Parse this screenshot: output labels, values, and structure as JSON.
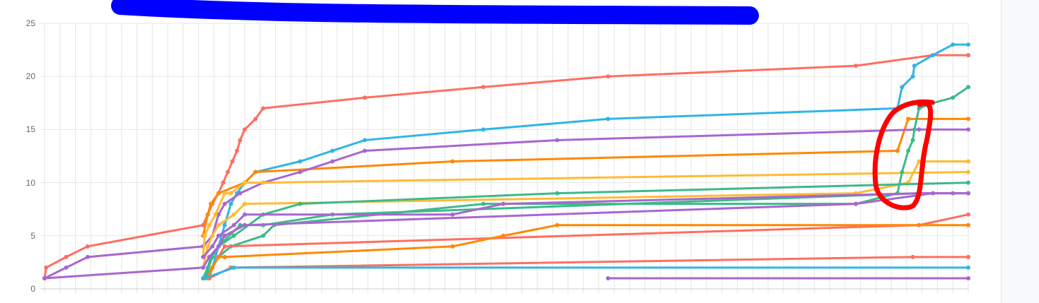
{
  "chart_data": {
    "type": "line",
    "title": "",
    "xlabel": "",
    "ylabel": "",
    "xlim": [
      0,
      60
    ],
    "ylim": [
      0,
      25
    ],
    "yticks": [
      "0",
      "5",
      "10",
      "15",
      "20",
      "25"
    ],
    "grid": true,
    "legend": "none",
    "series": [
      {
        "color": "#ff6e61",
        "points": [
          [
            0,
            1
          ],
          [
            0.1,
            2
          ],
          [
            1.4,
            3
          ],
          [
            2.8,
            4
          ],
          [
            10.3,
            6
          ],
          [
            10.6,
            7
          ],
          [
            10.9,
            8
          ],
          [
            11.3,
            9
          ],
          [
            11.6,
            10
          ],
          [
            11.9,
            11
          ],
          [
            12.2,
            12
          ],
          [
            12.5,
            13
          ],
          [
            12.7,
            14
          ],
          [
            13.0,
            15
          ],
          [
            13.7,
            16
          ],
          [
            14.2,
            17
          ],
          [
            20.8,
            18
          ],
          [
            28.5,
            19
          ],
          [
            36.6,
            20
          ],
          [
            52.7,
            21
          ],
          [
            57.7,
            22
          ],
          [
            60,
            22
          ]
        ]
      },
      {
        "color": "#30b5e5",
        "points": [
          [
            10.3,
            1
          ],
          [
            10.9,
            2
          ],
          [
            11.3,
            4
          ],
          [
            11.7,
            6
          ],
          [
            12.1,
            8
          ],
          [
            12.5,
            9
          ],
          [
            13.0,
            10
          ],
          [
            13.7,
            11
          ],
          [
            16.6,
            12
          ],
          [
            18.7,
            13
          ],
          [
            20.8,
            14
          ],
          [
            28.5,
            15
          ],
          [
            36.6,
            16
          ],
          [
            55.4,
            17
          ],
          [
            55.7,
            19
          ],
          [
            56.4,
            20
          ],
          [
            56.5,
            21
          ],
          [
            57.7,
            22
          ],
          [
            59.0,
            23
          ],
          [
            60,
            23
          ]
        ]
      },
      {
        "color": "#ff8800",
        "points": [
          [
            10.3,
            5
          ],
          [
            10.6,
            7
          ],
          [
            10.8,
            8
          ],
          [
            11.3,
            9
          ],
          [
            13.0,
            10
          ],
          [
            13.7,
            11
          ],
          [
            26.5,
            12
          ],
          [
            55.4,
            13
          ],
          [
            56.1,
            16
          ],
          [
            60,
            16
          ]
        ]
      },
      {
        "color": "#a966cf",
        "points": [
          [
            0,
            1
          ],
          [
            1.4,
            2
          ],
          [
            2.8,
            3
          ],
          [
            10.3,
            4
          ],
          [
            10.9,
            5
          ],
          [
            11.3,
            7
          ],
          [
            11.7,
            8
          ],
          [
            12.7,
            9
          ],
          [
            14.2,
            10
          ],
          [
            16.6,
            11
          ],
          [
            18.7,
            12
          ],
          [
            20.8,
            13
          ],
          [
            33.3,
            14
          ],
          [
            56.8,
            15
          ],
          [
            60,
            15
          ]
        ]
      },
      {
        "color": "#ffbb33",
        "points": [
          [
            10.3,
            3
          ],
          [
            10.4,
            5
          ],
          [
            10.7,
            6
          ],
          [
            11.1,
            7
          ],
          [
            11.7,
            9
          ],
          [
            12.1,
            9
          ],
          [
            13.0,
            10
          ],
          [
            14.2,
            10
          ],
          [
            60,
            11
          ]
        ]
      },
      {
        "color": "#ffbb33",
        "points": [
          [
            10.3,
            2
          ],
          [
            10.6,
            4
          ],
          [
            10.9,
            5
          ],
          [
            11.3,
            6
          ],
          [
            12.3,
            7
          ],
          [
            13.0,
            8
          ],
          [
            52.7,
            9
          ],
          [
            56.1,
            10
          ],
          [
            56.8,
            12
          ],
          [
            60,
            12
          ]
        ]
      },
      {
        "color": "#3cba8a",
        "points": [
          [
            10.3,
            1
          ],
          [
            10.6,
            2
          ],
          [
            10.8,
            3
          ],
          [
            11.3,
            4
          ],
          [
            12.3,
            5
          ],
          [
            14.2,
            7
          ],
          [
            16.6,
            8
          ],
          [
            33.3,
            9
          ],
          [
            60,
            10
          ]
        ]
      },
      {
        "color": "#3cba8a",
        "points": [
          [
            10.4,
            1
          ],
          [
            10.9,
            2
          ],
          [
            11.3,
            3
          ],
          [
            12.1,
            4
          ],
          [
            14.2,
            5
          ],
          [
            14.9,
            6
          ],
          [
            28.5,
            8
          ],
          [
            52.7,
            8
          ],
          [
            55.4,
            9
          ],
          [
            55.7,
            11
          ],
          [
            56.1,
            13
          ],
          [
            56.4,
            14
          ],
          [
            56.5,
            15
          ],
          [
            56.8,
            17
          ],
          [
            57.7,
            17.5
          ],
          [
            59.0,
            18
          ],
          [
            60,
            19
          ]
        ]
      },
      {
        "color": "#3cba8a",
        "points": [
          [
            10.4,
            1
          ],
          [
            10.9,
            3
          ],
          [
            11.3,
            4
          ],
          [
            12.7,
            6
          ],
          [
            14.2,
            6
          ],
          [
            18.7,
            7
          ],
          [
            56.8,
            9
          ],
          [
            60,
            9
          ]
        ]
      },
      {
        "color": "#a966cf",
        "points": [
          [
            10.3,
            3
          ],
          [
            10.9,
            4
          ],
          [
            11.3,
            5
          ],
          [
            12.3,
            6
          ],
          [
            13.0,
            7
          ],
          [
            26.5,
            7
          ],
          [
            29.8,
            8
          ],
          [
            56.8,
            9
          ],
          [
            60,
            9
          ]
        ]
      },
      {
        "color": "#a966cf",
        "points": [
          [
            0,
            1
          ],
          [
            10.3,
            2
          ],
          [
            10.7,
            3
          ],
          [
            11.3,
            4
          ],
          [
            11.7,
            5
          ],
          [
            13.0,
            6
          ],
          [
            52.7,
            8
          ],
          [
            57.7,
            9
          ],
          [
            59.0,
            9
          ],
          [
            60,
            9
          ]
        ]
      },
      {
        "color": "#ff6e61",
        "points": [
          [
            10.7,
            1
          ],
          [
            10.9,
            2
          ],
          [
            11.3,
            3
          ],
          [
            11.7,
            4
          ],
          [
            56.8,
            6
          ],
          [
            60,
            7
          ]
        ]
      },
      {
        "color": "#ff8800",
        "points": [
          [
            10.6,
            1
          ],
          [
            10.9,
            2
          ],
          [
            11.3,
            3
          ],
          [
            11.7,
            3
          ],
          [
            26.5,
            4
          ],
          [
            29.8,
            5
          ],
          [
            33.3,
            6
          ],
          [
            60,
            6
          ]
        ]
      },
      {
        "color": "#ff6e61",
        "points": [
          [
            10.7,
            1
          ],
          [
            12.1,
            2
          ],
          [
            56.4,
            3
          ],
          [
            60,
            3
          ]
        ]
      },
      {
        "color": "#30b5e5",
        "points": [
          [
            10.4,
            1
          ],
          [
            12.3,
            2
          ],
          [
            60,
            2
          ]
        ]
      },
      {
        "color": "#a966cf",
        "points": [
          [
            36.6,
            1
          ],
          [
            60,
            1
          ]
        ]
      }
    ]
  }
}
